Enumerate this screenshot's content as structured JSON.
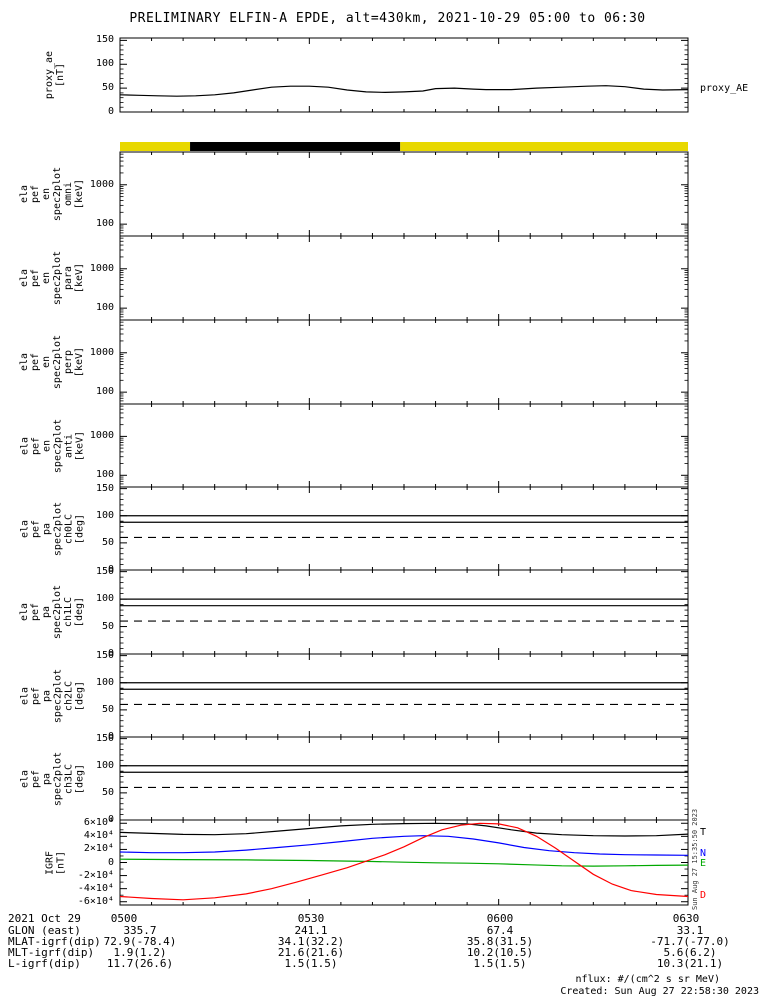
{
  "title": "PRELIMINARY ELFIN-A EPDE, alt=430km, 2021-10-29 05:00 to 06:30",
  "time_axis": {
    "tick_labels": [
      "0500",
      "0530",
      "0600",
      "0630"
    ],
    "tick_minutes": [
      0,
      30,
      60,
      90
    ],
    "range_minutes": [
      0,
      90
    ]
  },
  "footer": {
    "date_label": "2021 Oct 29",
    "time_ticks": [
      "0500",
      "0530",
      "0600",
      "0630"
    ],
    "rows": [
      {
        "label": "GLON (east)",
        "values": [
          "335.7",
          "241.1",
          "67.4",
          "33.1"
        ]
      },
      {
        "label": "MLAT-igrf(dip)",
        "values": [
          "72.9(-78.4)",
          "34.1(32.2)",
          "35.8(31.5)",
          "-71.7(-77.0)"
        ]
      },
      {
        "label": "MLT-igrf(dip)",
        "values": [
          "1.9(1.2)",
          "21.6(21.6)",
          "10.2(10.5)",
          "5.6(6.2)"
        ]
      },
      {
        "label": "L-igrf(dip)",
        "values": [
          "11.7(26.6)",
          "1.5(1.5)",
          "1.5(1.5)",
          "10.3(21.1)"
        ]
      }
    ]
  },
  "notes": {
    "nflux": "nflux: #/(cm^2 s sr MeV)",
    "created": "Created: Sun Aug 27 22:58:30 2023",
    "side_stamp": "Sun Aug 27 15:35:50 2023"
  },
  "chart_data": [
    {
      "id": "proxy_ae",
      "type": "line",
      "ylabel_lines": [
        "proxy_ae",
        "[nT]"
      ],
      "ylim": [
        0,
        155
      ],
      "yticks": [
        0,
        50,
        100,
        150
      ],
      "ytick_labels": [
        "0",
        "50",
        "100",
        "150"
      ],
      "right_label": "proxy_AE",
      "series": [
        {
          "name": "proxy_AE",
          "color": "#000000",
          "x": [
            0,
            3,
            6,
            9,
            12,
            15,
            18,
            21,
            24,
            27,
            30,
            33,
            36,
            39,
            42,
            45,
            48,
            50,
            53,
            56,
            58,
            62,
            66,
            70,
            74,
            77,
            80,
            83,
            86,
            90
          ],
          "y": [
            36,
            35,
            34,
            33,
            34,
            36,
            40,
            46,
            52,
            54,
            54,
            52,
            46,
            42,
            41,
            42,
            44,
            49,
            50,
            48,
            47,
            47,
            50,
            52,
            54,
            55,
            53,
            48,
            46,
            47
          ]
        }
      ]
    },
    {
      "id": "sunlight_bar",
      "type": "strip",
      "segments": [
        {
          "from": 0,
          "to": 11.1,
          "color": "#e8d800"
        },
        {
          "from": 11.1,
          "to": 44.4,
          "color": "#000000"
        },
        {
          "from": 44.4,
          "to": 90,
          "color": "#e8d800"
        }
      ]
    },
    {
      "id": "en_spec_omni",
      "type": "log_spec",
      "ylabel_lines": [
        "ela",
        "pef",
        "en",
        "spec2plot",
        "omni",
        "[keV]"
      ],
      "ylim": [
        50,
        6800
      ],
      "yticks": [
        100,
        1000
      ],
      "ytick_labels": [
        "100",
        "1000"
      ]
    },
    {
      "id": "en_spec_para",
      "type": "log_spec",
      "ylabel_lines": [
        "ela",
        "pef",
        "en",
        "spec2plot",
        "para",
        "[keV]"
      ],
      "ylim": [
        50,
        6800
      ],
      "yticks": [
        100,
        1000
      ],
      "ytick_labels": [
        "100",
        "1000"
      ]
    },
    {
      "id": "en_spec_perp",
      "type": "log_spec",
      "ylabel_lines": [
        "ela",
        "pef",
        "en",
        "spec2plot",
        "perp",
        "[keV]"
      ],
      "ylim": [
        50,
        6800
      ],
      "yticks": [
        100,
        1000
      ],
      "ytick_labels": [
        "100",
        "1000"
      ]
    },
    {
      "id": "en_spec_anti",
      "type": "log_spec",
      "ylabel_lines": [
        "ela",
        "pef",
        "en",
        "spec2plot",
        "anti",
        "[keV]"
      ],
      "ylim": [
        50,
        6800
      ],
      "yticks": [
        100,
        1000
      ],
      "ytick_labels": [
        "100",
        "1000"
      ]
    },
    {
      "id": "pa_spec_ch0LC",
      "type": "pa",
      "ylabel_lines": [
        "ela",
        "pef",
        "pa",
        "spec2plot",
        "ch0LC",
        "[deg]"
      ],
      "ylim": [
        0,
        153
      ],
      "yticks": [
        0,
        50,
        100,
        150
      ],
      "ytick_labels": [
        "0",
        "50",
        "100",
        "150"
      ],
      "lines": [
        {
          "style": "solid",
          "value": 100
        },
        {
          "style": "solid",
          "value": 88
        },
        {
          "style": "dashed",
          "value": 60
        }
      ]
    },
    {
      "id": "pa_spec_ch1LC",
      "type": "pa",
      "ylabel_lines": [
        "ela",
        "pef",
        "pa",
        "spec2plot",
        "ch1LC",
        "[deg]"
      ],
      "ylim": [
        0,
        153
      ],
      "yticks": [
        0,
        50,
        100,
        150
      ],
      "ytick_labels": [
        "0",
        "50",
        "100",
        "150"
      ],
      "lines": [
        {
          "style": "solid",
          "value": 100
        },
        {
          "style": "solid",
          "value": 88
        },
        {
          "style": "dashed",
          "value": 60
        }
      ]
    },
    {
      "id": "pa_spec_ch2LC",
      "type": "pa",
      "ylabel_lines": [
        "ela",
        "pef",
        "pa",
        "spec2plot",
        "ch2LC",
        "[deg]"
      ],
      "ylim": [
        0,
        153
      ],
      "yticks": [
        0,
        50,
        100,
        150
      ],
      "ytick_labels": [
        "0",
        "50",
        "100",
        "150"
      ],
      "lines": [
        {
          "style": "solid",
          "value": 100
        },
        {
          "style": "solid",
          "value": 88
        },
        {
          "style": "dashed",
          "value": 60
        }
      ]
    },
    {
      "id": "pa_spec_ch3LC",
      "type": "pa",
      "ylabel_lines": [
        "ela",
        "pef",
        "pa",
        "spec2plot",
        "ch3LC",
        "[deg]"
      ],
      "ylim": [
        0,
        153
      ],
      "yticks": [
        0,
        50,
        100,
        150
      ],
      "ytick_labels": [
        "0",
        "50",
        "100",
        "150"
      ],
      "lines": [
        {
          "style": "solid",
          "value": 100
        },
        {
          "style": "solid",
          "value": 88
        },
        {
          "style": "dashed",
          "value": 60
        }
      ]
    },
    {
      "id": "igrf",
      "type": "line",
      "ylabel_lines": [
        "IGRF",
        "[nT]"
      ],
      "ylim": [
        -65000,
        65000
      ],
      "yticks": [
        -60000,
        -40000,
        -20000,
        0,
        20000,
        40000,
        60000
      ],
      "ytick_labels": [
        "-6×10⁴",
        "-4×10⁴",
        "-2×10⁴",
        "0",
        "2×10⁴",
        "4×10⁴",
        "6×10⁴"
      ],
      "legend": [
        {
          "name": "T",
          "color": "#000000"
        },
        {
          "name": "N",
          "color": "#0000ff"
        },
        {
          "name": "E",
          "color": "#00a800"
        },
        {
          "name": "D",
          "color": "#ff0000"
        }
      ],
      "series": [
        {
          "name": "T",
          "color": "#000000",
          "x": [
            0,
            5,
            10,
            15,
            20,
            25,
            30,
            35,
            40,
            45,
            50,
            55,
            58,
            62,
            66,
            70,
            75,
            80,
            85,
            90
          ],
          "y": [
            46000,
            44500,
            43000,
            42500,
            44000,
            48000,
            52000,
            56000,
            58500,
            59500,
            60000,
            59000,
            56000,
            50000,
            45000,
            42500,
            41000,
            40500,
            41000,
            43500
          ]
        },
        {
          "name": "N",
          "color": "#0000ff",
          "x": [
            0,
            5,
            10,
            15,
            20,
            25,
            30,
            35,
            40,
            45,
            48,
            52,
            56,
            60,
            64,
            68,
            72,
            76,
            80,
            85,
            90
          ],
          "y": [
            16000,
            15000,
            15000,
            16000,
            19000,
            23000,
            27000,
            32000,
            37000,
            40000,
            41000,
            40000,
            36000,
            30000,
            23000,
            18000,
            15000,
            13000,
            12000,
            11500,
            11000
          ]
        },
        {
          "name": "E",
          "color": "#00a800",
          "x": [
            0,
            10,
            20,
            30,
            40,
            45,
            50,
            55,
            60,
            65,
            70,
            75,
            80,
            85,
            90
          ],
          "y": [
            5000,
            4500,
            4000,
            3000,
            1500,
            500,
            -500,
            -1000,
            -2000,
            -3500,
            -5000,
            -5500,
            -5000,
            -4500,
            -4000
          ]
        },
        {
          "name": "D",
          "color": "#ff0000",
          "x": [
            0,
            5,
            10,
            15,
            20,
            24,
            28,
            32,
            36,
            39,
            42,
            45,
            48,
            51,
            54,
            57,
            60,
            63,
            66,
            69,
            72,
            75,
            78,
            81,
            85,
            90
          ],
          "y": [
            -52000,
            -55000,
            -57000,
            -54000,
            -48000,
            -40000,
            -30000,
            -19000,
            -8000,
            2000,
            12000,
            24000,
            38000,
            50000,
            57000,
            60000,
            59000,
            53000,
            40000,
            22000,
            2000,
            -18000,
            -33000,
            -43000,
            -49000,
            -52000
          ]
        }
      ]
    }
  ]
}
